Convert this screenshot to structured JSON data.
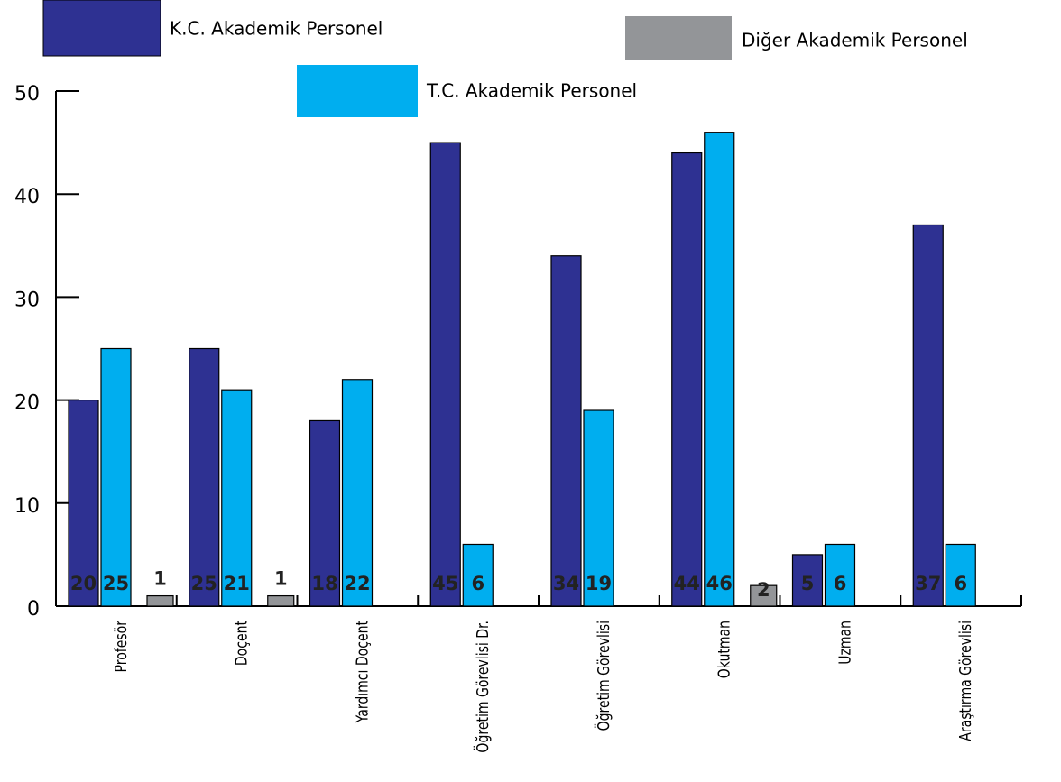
{
  "chart_data": {
    "type": "bar",
    "categories": [
      "Profesör",
      "Doçent",
      "Yardımcı Doçent",
      "Öğretim Görevlisi Dr.",
      "Öğretim Görevlisi",
      "Okutman",
      "Uzman",
      "Araştırma Görevlisi"
    ],
    "series": [
      {
        "name": "K.C. Akademik Personel",
        "color": "#2e3192",
        "values": [
          20,
          25,
          18,
          45,
          34,
          44,
          5,
          37
        ]
      },
      {
        "name": "T.C. Akademik Personel",
        "color": "#00aeef",
        "values": [
          25,
          21,
          22,
          6,
          19,
          46,
          6,
          6
        ]
      },
      {
        "name": "Diğer Akademik Personel",
        "color": "#939598",
        "values": [
          1,
          1,
          null,
          null,
          null,
          2,
          null,
          null
        ]
      }
    ],
    "ylim": [
      0,
      50
    ],
    "yticks": [
      0,
      10,
      20,
      30,
      40,
      50
    ]
  }
}
